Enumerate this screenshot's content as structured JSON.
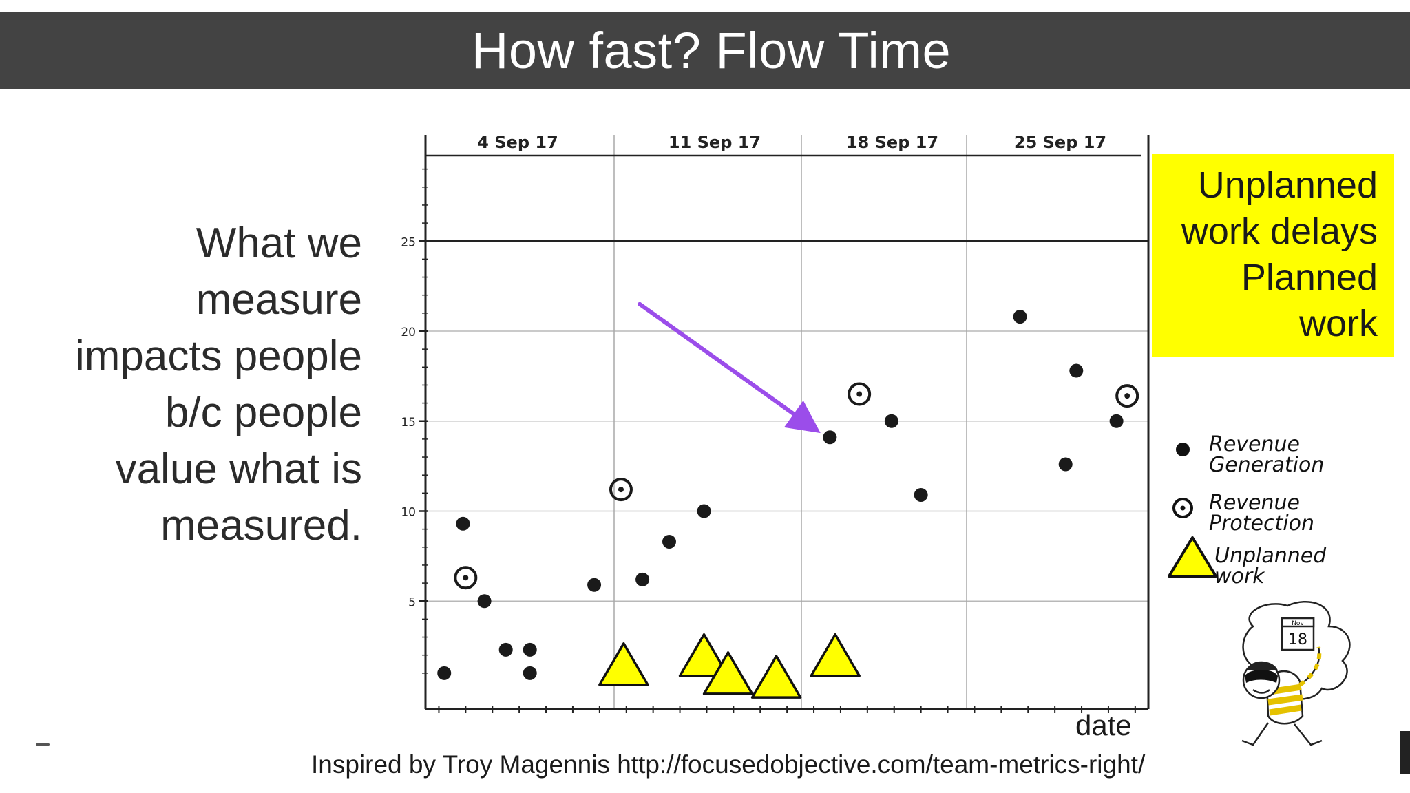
{
  "header": {
    "title": "How fast? Flow Time"
  },
  "statement": {
    "lines": [
      "What we",
      "measure",
      "impacts people",
      "b/c people",
      "value what is",
      "measured."
    ]
  },
  "callout": {
    "lines": [
      "Unplanned",
      "work delays",
      "Planned",
      "work"
    ],
    "background": "#ffff00"
  },
  "legend": {
    "items": [
      {
        "marker": "filled-dot-icon",
        "label": "Revenue\nGeneration"
      },
      {
        "marker": "circled-dot-icon",
        "label": "Revenue\nProtection"
      },
      {
        "marker": "yellow-triangle-icon",
        "label": "Unplanned\nwork"
      }
    ]
  },
  "credit": {
    "text": "Inspired by Troy Magennis http://focusedobjective.com/team-metrics-right/"
  },
  "mascot": {
    "calendar_month": "Nov",
    "calendar_day": "18"
  },
  "chart_data": {
    "type": "scatter",
    "title": "",
    "xlabel": "date",
    "ylabel": "",
    "x_tick_labels": [
      "4 Sep 17",
      "11 Sep 17",
      "18 Sep 17",
      "25 Sep 17"
    ],
    "x_range": [
      "2017-09-04",
      "2017-09-30"
    ],
    "y_tick_labels": [
      "5",
      "10",
      "15",
      "20",
      "25"
    ],
    "ylim": [
      0,
      30
    ],
    "threshold_line": 25,
    "grid": true,
    "legend_position": "right",
    "arrow_color": "#9b4dea",
    "arrow_from": {
      "x": "2017-09-12",
      "y": 21.5
    },
    "arrow_to": {
      "x": "2017-09-18.5",
      "y": 14.6
    },
    "series": [
      {
        "name": "Revenue Generation",
        "marker": "filled-dot",
        "color": "#1a1a1a",
        "points": [
          {
            "x": 4.7,
            "y": 1.0
          },
          {
            "x": 5.4,
            "y": 9.3
          },
          {
            "x": 6.2,
            "y": 5.0
          },
          {
            "x": 7.0,
            "y": 2.3
          },
          {
            "x": 7.9,
            "y": 2.3
          },
          {
            "x": 7.9,
            "y": 1.0
          },
          {
            "x": 10.3,
            "y": 5.9
          },
          {
            "x": 12.1,
            "y": 6.2
          },
          {
            "x": 13.1,
            "y": 8.3
          },
          {
            "x": 14.4,
            "y": 10.0
          },
          {
            "x": 19.1,
            "y": 14.1
          },
          {
            "x": 21.4,
            "y": 15.0
          },
          {
            "x": 22.5,
            "y": 10.9
          },
          {
            "x": 26.2,
            "y": 20.8
          },
          {
            "x": 27.9,
            "y": 12.6
          },
          {
            "x": 28.3,
            "y": 17.8
          },
          {
            "x": 29.8,
            "y": 15.0
          }
        ]
      },
      {
        "name": "Revenue Protection",
        "marker": "circled-dot",
        "color": "#1a1a1a",
        "points": [
          {
            "x": 5.5,
            "y": 6.3
          },
          {
            "x": 11.3,
            "y": 11.2
          },
          {
            "x": 20.2,
            "y": 16.5
          },
          {
            "x": 30.2,
            "y": 16.4
          }
        ]
      },
      {
        "name": "Unplanned work",
        "marker": "triangle",
        "color": "#ffff00",
        "points": [
          {
            "x": 11.4,
            "y": 1.5
          },
          {
            "x": 14.4,
            "y": 2.0
          },
          {
            "x": 15.3,
            "y": 1.0
          },
          {
            "x": 17.1,
            "y": 0.8
          },
          {
            "x": 19.3,
            "y": 2.0
          }
        ]
      }
    ]
  }
}
